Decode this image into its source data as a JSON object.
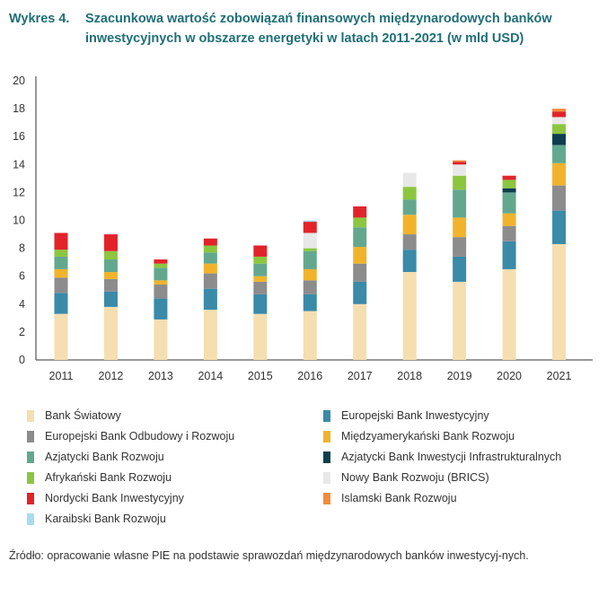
{
  "header": {
    "number": "Wykres 4.",
    "title": "Szacunkowa wartość zobowiązań finansowych międzynarodowych banków inwestycyjnych w obszarze energetyki w latach 2011-2021 (w mld USD)"
  },
  "source": "Źródło: opracowanie własne PIE na podstawie sprawozdań międzynarodowych banków inwestycyj-nych.",
  "chart_data": {
    "type": "bar",
    "stacked": true,
    "title": "Szacunkowa wartość zobowiązań finansowych międzynarodowych banków inwestycyjnych w obszarze energetyki w latach 2011-2021 (w mld USD)",
    "xlabel": "",
    "ylabel": "",
    "ylim": [
      0,
      20
    ],
    "yticks": [
      0,
      2,
      4,
      6,
      8,
      10,
      12,
      14,
      16,
      18,
      20
    ],
    "grid": false,
    "legend_position": "bottom",
    "categories": [
      "2011",
      "2012",
      "2013",
      "2014",
      "2015",
      "2016",
      "2017",
      "2018",
      "2019",
      "2020",
      "2021"
    ],
    "series": [
      {
        "name": "Bank Światowy",
        "color": "#f5deb0",
        "values": [
          3.3,
          3.8,
          2.9,
          3.6,
          3.3,
          3.5,
          4.0,
          6.3,
          5.6,
          6.5,
          8.3
        ]
      },
      {
        "name": "Europejski Bank Inwestycyjny",
        "color": "#3a8aa8",
        "values": [
          1.5,
          1.1,
          1.5,
          1.5,
          1.4,
          1.2,
          1.6,
          1.6,
          1.8,
          2.0,
          2.4
        ]
      },
      {
        "name": "Europejski Bank Odbudowy i Rozwoju",
        "color": "#8c8c8c",
        "values": [
          1.1,
          0.9,
          1.0,
          1.1,
          0.9,
          1.0,
          1.3,
          1.1,
          1.4,
          1.1,
          1.8
        ]
      },
      {
        "name": "Międzyamerykański Bank Rozwoju",
        "color": "#f2b32c",
        "values": [
          0.6,
          0.5,
          0.3,
          0.7,
          0.4,
          0.8,
          1.2,
          1.4,
          1.4,
          0.9,
          1.6
        ]
      },
      {
        "name": "Azjatycki Bank Rozwoju",
        "color": "#63a88e",
        "values": [
          0.9,
          0.9,
          0.9,
          0.8,
          0.9,
          1.3,
          1.4,
          1.1,
          2.0,
          1.5,
          1.3
        ]
      },
      {
        "name": "Azjatycki Bank Inwestycji Infrastrukturalnych",
        "color": "#0f3f4e",
        "values": [
          0,
          0,
          0,
          0,
          0,
          0,
          0,
          0,
          0,
          0.3,
          0.8
        ]
      },
      {
        "name": "Afrykański Bank Rozwoju",
        "color": "#8cc63f",
        "values": [
          0.5,
          0.6,
          0.3,
          0.5,
          0.5,
          0.2,
          0.7,
          0.9,
          1.0,
          0.6,
          0.7
        ]
      },
      {
        "name": "Nowy Bank Rozwoju (BRICS)",
        "color": "#e8e8e8",
        "values": [
          0,
          0,
          0,
          0,
          0,
          1.1,
          0,
          1.0,
          0.8,
          0,
          0.5
        ]
      },
      {
        "name": "Nordycki Bank Inwestycyjny",
        "color": "#e2232a",
        "values": [
          1.2,
          1.2,
          0.3,
          0.5,
          0.8,
          0.8,
          0.8,
          0,
          0.2,
          0.3,
          0.4
        ]
      },
      {
        "name": "Islamski Bank Rozwoju",
        "color": "#f28c38",
        "values": [
          0,
          0,
          0,
          0,
          0,
          0,
          0,
          0,
          0.1,
          0,
          0.2
        ]
      },
      {
        "name": "Karaibski Bank Rozwoju",
        "color": "#a8dcef",
        "values": [
          0,
          0,
          0,
          0,
          0,
          0.1,
          0,
          0,
          0,
          0,
          0
        ]
      }
    ]
  }
}
